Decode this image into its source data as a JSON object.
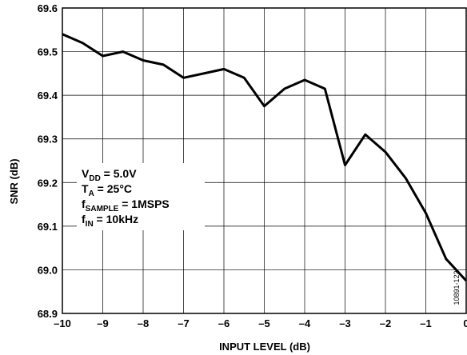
{
  "chart_data": {
    "type": "line",
    "xlabel": "INPUT LEVEL (dB)",
    "ylabel": "SNR (dB)",
    "xlim": [
      -10,
      0
    ],
    "ylim": [
      68.9,
      69.6
    ],
    "x_ticks": [
      "–10",
      "–9",
      "–8",
      "–7",
      "–6",
      "–5",
      "–4",
      "–3",
      "–2",
      "–1",
      "0"
    ],
    "y_ticks": [
      "68.9",
      "69.0",
      "69.1",
      "69.2",
      "69.3",
      "69.4",
      "69.5",
      "69.6"
    ],
    "grid": true,
    "series": [
      {
        "x": [
          -10,
          -9.5,
          -9,
          -8.5,
          -8,
          -7.5,
          -7,
          -6.5,
          -6,
          -5.5,
          -5,
          -4.5,
          -4,
          -3.5,
          -3,
          -2.5,
          -2,
          -1.5,
          -1,
          -0.5,
          0
        ],
        "values": [
          69.54,
          69.52,
          69.49,
          69.5,
          69.48,
          69.47,
          69.44,
          69.45,
          69.46,
          69.44,
          69.375,
          69.415,
          69.435,
          69.415,
          69.24,
          69.31,
          69.27,
          69.21,
          69.13,
          69.025,
          68.975
        ]
      }
    ],
    "annotation": {
      "line1_main": "V",
      "line1_sub": "DD",
      "line1_rest": " = 5.0V",
      "line2_main": "T",
      "line2_sub": "A",
      "line2_rest": " = 25°C",
      "line3_main": "f",
      "line3_sub": "SAMPLE",
      "line3_rest": " = 1MSPS",
      "line4_main": "f",
      "line4_sub": "IN",
      "line4_rest": " = 10kHz"
    },
    "figure_id": "10891-123"
  }
}
